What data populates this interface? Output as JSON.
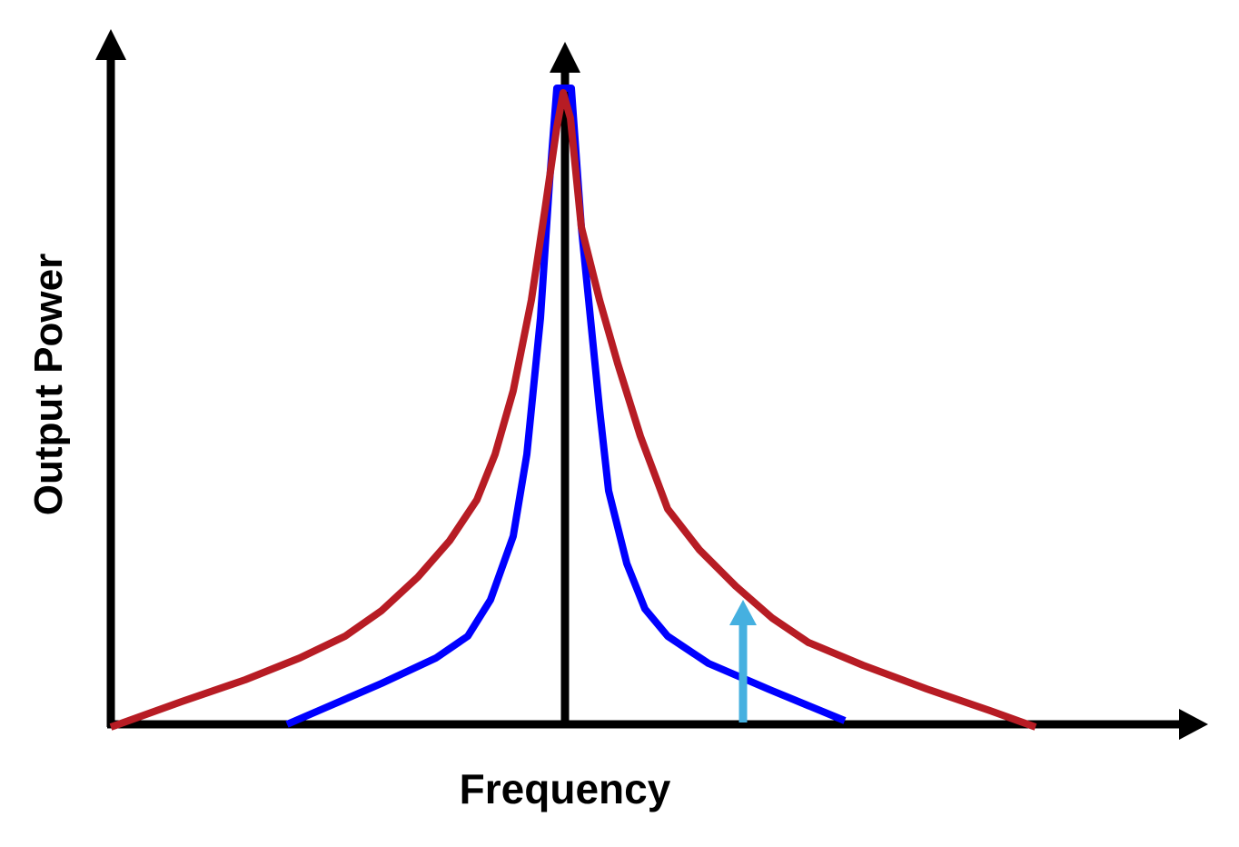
{
  "axes": {
    "x_label": "Frequency",
    "y_label": "Output Power"
  }
}
